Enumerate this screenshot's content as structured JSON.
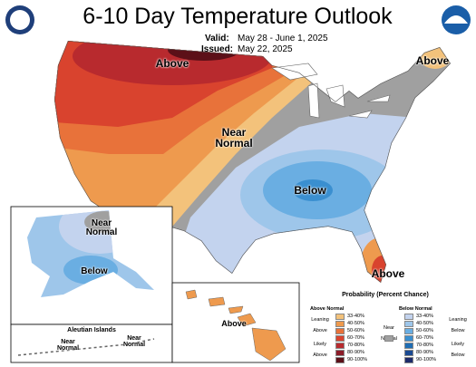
{
  "header": {
    "title": "6-10 Day Temperature Outlook",
    "valid_label": "Valid:",
    "valid": "May 28 - June 1, 2025",
    "issued_label": "Issued:",
    "issued": "May 22, 2025"
  },
  "map_labels": [
    "Above",
    "Above",
    "Near Normal",
    "Below",
    "Above"
  ],
  "alaska_labels": [
    "Near Normal",
    "Below"
  ],
  "aleutian": {
    "title": "Aleutian Islands",
    "labels": [
      "Near Normal",
      "Near Normal"
    ]
  },
  "hawaii_labels": [
    "Above"
  ],
  "legend": {
    "title": "Probability (Percent Chance)",
    "above_title": "Above Normal",
    "below_title": "Below Normal",
    "leaning_above": "Leaning Above",
    "likely_above": "Likely Above",
    "near_label": "Near Normal",
    "near_color": "#a0a0a0",
    "leaning_below": "Leaning Below",
    "likely_below": "Likely Below",
    "above_bins": [
      {
        "label": "33-40%",
        "color": "#f3c27b"
      },
      {
        "label": "40-50%",
        "color": "#ee9a4e"
      },
      {
        "label": "50-60%",
        "color": "#e8723a"
      },
      {
        "label": "60-70%",
        "color": "#d9432e"
      },
      {
        "label": "70-80%",
        "color": "#b82a2e"
      },
      {
        "label": "80-90%",
        "color": "#8c1c28"
      },
      {
        "label": "90-100%",
        "color": "#5c1018"
      }
    ],
    "below_bins": [
      {
        "label": "33-40%",
        "color": "#c3d3ee"
      },
      {
        "label": "40-50%",
        "color": "#9ec6ea"
      },
      {
        "label": "50-60%",
        "color": "#6aaee2"
      },
      {
        "label": "60-70%",
        "color": "#3a8fd0"
      },
      {
        "label": "70-80%",
        "color": "#1f6db4"
      },
      {
        "label": "80-90%",
        "color": "#1a4a92"
      },
      {
        "label": "90-100%",
        "color": "#1d2b6a"
      }
    ]
  }
}
